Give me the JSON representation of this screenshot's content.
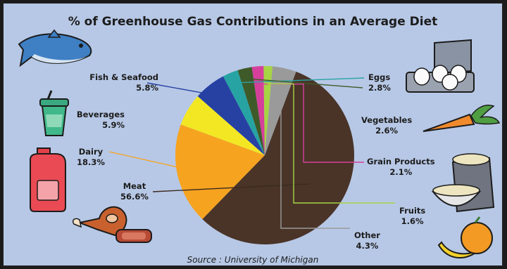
{
  "chart_data": {
    "type": "pie",
    "title": "% of Greenhouse Gas Contributions in an Average Diet",
    "source": "Source : University of Michigan",
    "slices": [
      {
        "name": "Meat",
        "value": 56.6,
        "display": "56.6%",
        "color": "#4a3428"
      },
      {
        "name": "Dairy",
        "value": 18.3,
        "display": "18.3%",
        "color": "#f6a320"
      },
      {
        "name": "Beverages",
        "value": 5.9,
        "display": "5.9%",
        "color": "#f3e724"
      },
      {
        "name": "Fish & Seafood",
        "value": 5.8,
        "display": "5.8%",
        "color": "#2741a3"
      },
      {
        "name": "Eggs",
        "value": 2.8,
        "display": "2.8%",
        "color": "#27a3a3"
      },
      {
        "name": "Vegetables",
        "value": 2.6,
        "display": "2.6%",
        "color": "#3f5a29"
      },
      {
        "name": "Grain Products",
        "value": 2.1,
        "display": "2.1%",
        "color": "#d6409c"
      },
      {
        "name": "Fruits",
        "value": 1.6,
        "display": "1.6%",
        "color": "#a6d444"
      },
      {
        "name": "Other",
        "value": 4.3,
        "display": "4.3%",
        "color": "#9a9a9a"
      }
    ]
  },
  "icons": [
    "fish-icon",
    "cup-icon",
    "milk-jug-icon",
    "meat-icon",
    "egg-carton-icon",
    "carrot-icon",
    "grain-sack-icon",
    "fruit-icon"
  ]
}
